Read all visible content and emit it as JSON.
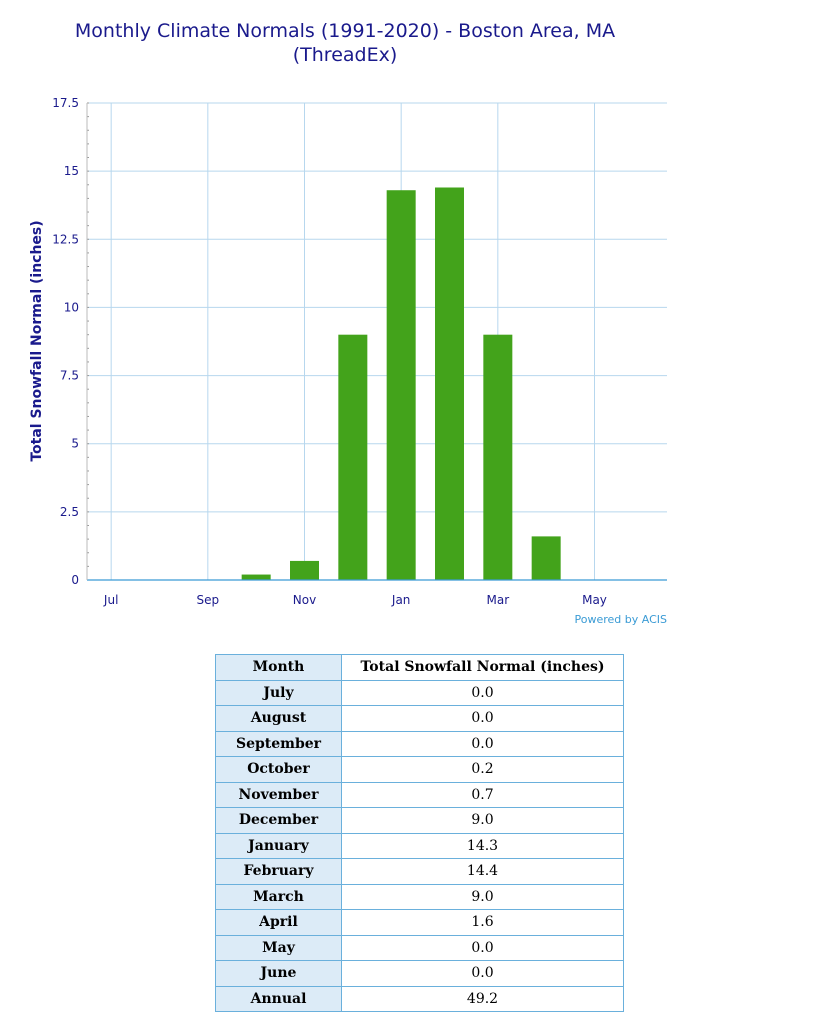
{
  "title_line1": "Monthly Climate Normals (1991-2020) - Boston Area, MA",
  "title_line2": "(ThreadEx)",
  "credit": "Powered by ACIS",
  "colors": {
    "bar": "#43a31b",
    "grid": "#b7d7ee",
    "text": "#1a1a8c",
    "accent": "#3a9bd5"
  },
  "chart_data": {
    "type": "bar",
    "title": "Monthly Climate Normals (1991-2020) - Boston Area, MA (ThreadEx)",
    "ylabel": "Total Snowfall Normal (inches)",
    "xlabel": "",
    "ylim": [
      0,
      17.5
    ],
    "yticks": [
      "0",
      "2.5",
      "5",
      "7.5",
      "10",
      "12.5",
      "15",
      "17.5"
    ],
    "xtick_labels": [
      "Jul",
      "Sep",
      "Nov",
      "Jan",
      "Mar",
      "May"
    ],
    "categories": [
      "Jul",
      "Aug",
      "Sep",
      "Oct",
      "Nov",
      "Dec",
      "Jan",
      "Feb",
      "Mar",
      "Apr",
      "May",
      "Jun"
    ],
    "values": [
      0.0,
      0.0,
      0.0,
      0.2,
      0.7,
      9.0,
      14.3,
      14.4,
      9.0,
      1.6,
      0.0,
      0.0
    ],
    "grid": true
  },
  "table": {
    "headers": [
      "Month",
      "Total Snowfall Normal (inches)"
    ],
    "rows": [
      [
        "July",
        "0.0"
      ],
      [
        "August",
        "0.0"
      ],
      [
        "September",
        "0.0"
      ],
      [
        "October",
        "0.2"
      ],
      [
        "November",
        "0.7"
      ],
      [
        "December",
        "9.0"
      ],
      [
        "January",
        "14.3"
      ],
      [
        "February",
        "14.4"
      ],
      [
        "March",
        "9.0"
      ],
      [
        "April",
        "1.6"
      ],
      [
        "May",
        "0.0"
      ],
      [
        "June",
        "0.0"
      ],
      [
        "Annual",
        "49.2"
      ]
    ]
  }
}
